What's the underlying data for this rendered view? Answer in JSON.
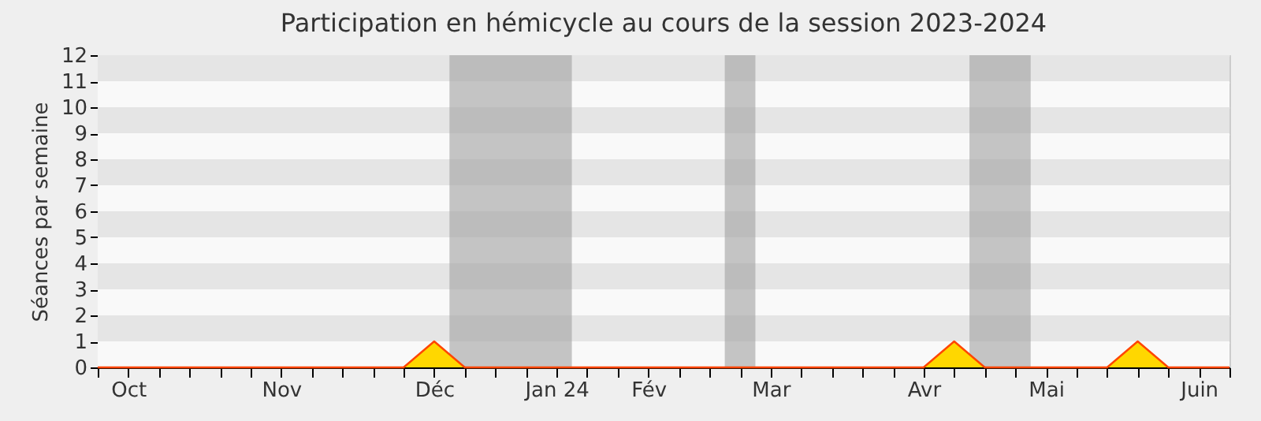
{
  "chart_data": {
    "type": "area",
    "title": "Participation en hémicycle au cours de la session 2023-2024",
    "ylabel": "Séances par semaine",
    "x": [
      "2023-09-29",
      "2023-10-06",
      "2023-10-13",
      "2023-10-20",
      "2023-10-27",
      "2023-11-03",
      "2023-11-10",
      "2023-11-17",
      "2023-11-24",
      "2023-12-01",
      "2023-12-08",
      "2023-12-15",
      "2023-12-22",
      "2023-12-29",
      "2024-01-05",
      "2024-01-12",
      "2024-01-19",
      "2024-01-26",
      "2024-02-02",
      "2024-02-09",
      "2024-02-16",
      "2024-02-23",
      "2024-03-01",
      "2024-03-08",
      "2024-03-15",
      "2024-03-22",
      "2024-03-29",
      "2024-04-05",
      "2024-04-12",
      "2024-04-19",
      "2024-04-26",
      "2024-05-03",
      "2024-05-10",
      "2024-05-17",
      "2024-05-24",
      "2024-05-31",
      "2024-06-07",
      "2024-06-14"
    ],
    "series": [
      {
        "color": "#ffd700",
        "values": [
          0,
          0,
          0,
          0,
          0,
          0,
          0,
          0,
          0,
          0,
          0,
          1,
          0,
          0,
          0,
          0,
          0,
          0,
          0,
          0,
          0,
          0,
          0,
          0,
          0,
          0,
          0,
          0,
          1,
          0,
          0,
          0,
          0,
          0,
          1,
          0,
          0,
          0
        ]
      }
    ],
    "xlim": [
      "2023-09-29",
      "2024-06-14"
    ],
    "xticks": [
      {
        "value": "2023-09-29",
        "label": null
      },
      {
        "value": "2023-10-06",
        "label": "Oct"
      },
      {
        "value": "2023-10-13",
        "label": null
      },
      {
        "value": "2023-10-20",
        "label": null
      },
      {
        "value": "2023-10-27",
        "label": null
      },
      {
        "value": "2023-11-03",
        "label": null
      },
      {
        "value": "2023-11-10",
        "label": "Nov"
      },
      {
        "value": "2023-11-17",
        "label": null
      },
      {
        "value": "2023-11-24",
        "label": null
      },
      {
        "value": "2023-12-01",
        "label": null
      },
      {
        "value": "2023-12-08",
        "label": null
      },
      {
        "value": "2023-12-15",
        "label": "Déc"
      },
      {
        "value": "2023-12-22",
        "label": null
      },
      {
        "value": "2023-12-29",
        "label": null
      },
      {
        "value": "2024-01-05",
        "label": null
      },
      {
        "value": "2024-01-12",
        "label": "Jan 24"
      },
      {
        "value": "2024-01-19",
        "label": null
      },
      {
        "value": "2024-01-26",
        "label": null
      },
      {
        "value": "2024-02-02",
        "label": "Fév"
      },
      {
        "value": "2024-02-09",
        "label": null
      },
      {
        "value": "2024-02-16",
        "label": null
      },
      {
        "value": "2024-02-23",
        "label": null
      },
      {
        "value": "2024-03-01",
        "label": "Mar"
      },
      {
        "value": "2024-03-08",
        "label": null
      },
      {
        "value": "2024-03-15",
        "label": null
      },
      {
        "value": "2024-03-22",
        "label": null
      },
      {
        "value": "2024-03-29",
        "label": null
      },
      {
        "value": "2024-04-05",
        "label": "Avr"
      },
      {
        "value": "2024-04-12",
        "label": null
      },
      {
        "value": "2024-04-19",
        "label": null
      },
      {
        "value": "2024-04-26",
        "label": null
      },
      {
        "value": "2024-05-03",
        "label": "Mai"
      },
      {
        "value": "2024-05-10",
        "label": null
      },
      {
        "value": "2024-05-17",
        "label": null
      },
      {
        "value": "2024-05-24",
        "label": null
      },
      {
        "value": "2024-05-31",
        "label": null
      },
      {
        "value": "2024-06-07",
        "label": "Juin"
      },
      {
        "value": "2024-06-14",
        "label": null
      }
    ],
    "ylim": [
      0,
      12
    ],
    "yticks": [
      0,
      1,
      2,
      3,
      4,
      5,
      6,
      7,
      8,
      9,
      10,
      11,
      12
    ],
    "bands": [
      {
        "axis": "x",
        "from": "2023-12-18T12:00",
        "to": "2024-01-15T12:00",
        "color": "#a0a0a0"
      },
      {
        "axis": "x",
        "from": "2024-02-19T12:00",
        "to": "2024-02-26T12:00",
        "color": "#a0a0a0"
      },
      {
        "axis": "x",
        "from": "2024-04-15T12:00",
        "to": "2024-04-29T12:00",
        "color": "#a0a0a0"
      }
    ],
    "grid": "y"
  }
}
